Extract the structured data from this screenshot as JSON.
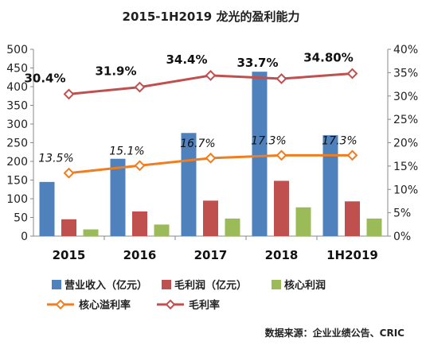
{
  "chart_data": {
    "type": "bar",
    "title": "2015-1H2019 龙光的盈利能力",
    "categories": [
      "2015",
      "2016",
      "2017",
      "2018",
      "1H2019"
    ],
    "series": [
      {
        "name": "营业收入（亿元）",
        "kind": "bar",
        "axis": "left",
        "color": "#4f81bd",
        "values": [
          145,
          207,
          276,
          440,
          270
        ]
      },
      {
        "name": "毛利润（亿元）",
        "kind": "bar",
        "axis": "left",
        "color": "#c0504d",
        "values": [
          45,
          66,
          95,
          148,
          93
        ]
      },
      {
        "name": "核心利润",
        "kind": "bar",
        "axis": "left",
        "color": "#9bbb59",
        "values": [
          18,
          31,
          47,
          77,
          47
        ]
      },
      {
        "name": "核心溢利率",
        "kind": "line",
        "axis": "right",
        "color": "#f07d1f",
        "values": [
          13.5,
          15.1,
          16.7,
          17.3,
          17.3
        ],
        "labels": [
          "13.5%",
          "15.1%",
          "16.7%",
          "17.3%",
          "17.3%"
        ]
      },
      {
        "name": "毛利率",
        "kind": "line",
        "axis": "right",
        "color": "#c0504d",
        "values": [
          30.4,
          31.9,
          34.4,
          33.7,
          34.8
        ],
        "labels": [
          "30.4%",
          "31.9%",
          "34.4%",
          "33.7%",
          "34.80%"
        ]
      }
    ],
    "y_left": {
      "min": 0,
      "max": 500,
      "step": 50,
      "tick_labels": [
        "0",
        "50",
        "100",
        "150",
        "200",
        "250",
        "300",
        "350",
        "400",
        "450",
        "500"
      ]
    },
    "y_right": {
      "min": 0,
      "max": 40,
      "step": 5,
      "tick_labels": [
        "0%",
        "5%",
        "10%",
        "15%",
        "20%",
        "25%",
        "30%",
        "35%",
        "40%"
      ]
    },
    "grid": false,
    "legend_position": "bottom"
  },
  "source_note": "数据来源：企业业绩公告、CRIC"
}
